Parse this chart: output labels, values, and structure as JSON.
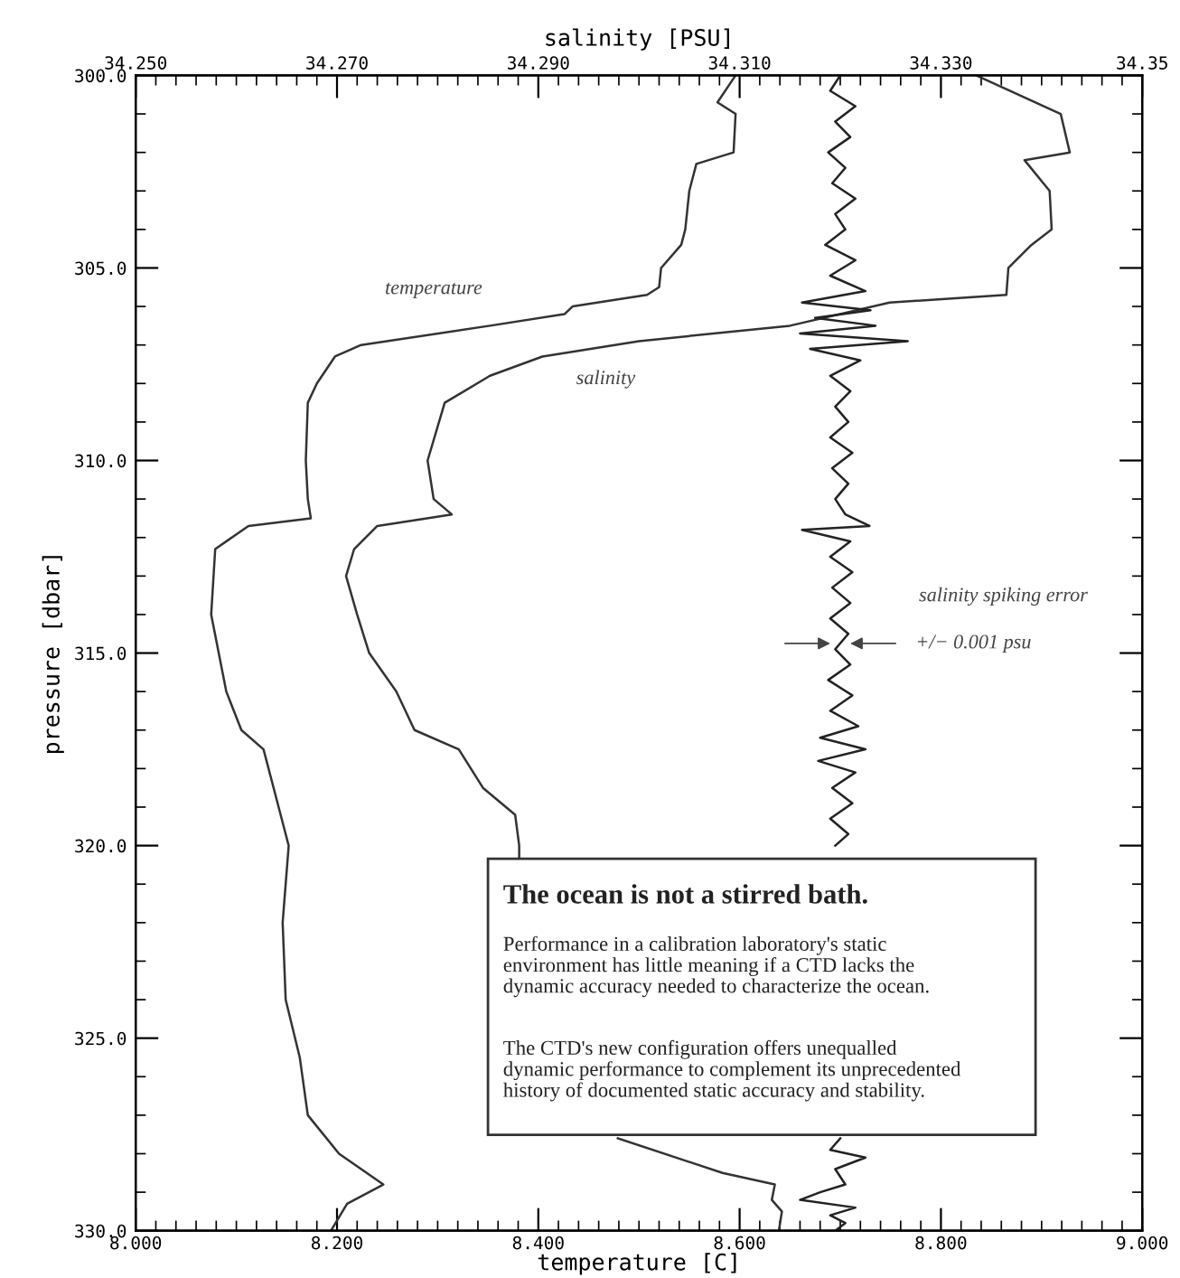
{
  "chart_data": {
    "type": "line",
    "orientation": "horizontal",
    "xlabel": "temperature [C]",
    "x2label": "salinity [PSU]",
    "ylabel": "pressure [dbar]",
    "xlim": [
      8.0,
      9.0
    ],
    "xticks": [
      {
        "value": 8.0,
        "label": "8.000"
      },
      {
        "value": 8.2,
        "label": "8.200"
      },
      {
        "value": 8.4,
        "label": "8.400"
      },
      {
        "value": 8.6,
        "label": "8.600"
      },
      {
        "value": 8.8,
        "label": "8.800"
      },
      {
        "value": 9.0,
        "label": "9.000"
      }
    ],
    "x2lim": [
      34.25,
      34.35
    ],
    "x2ticks": [
      {
        "value": 34.25,
        "label": "34.250"
      },
      {
        "value": 34.27,
        "label": "34.270"
      },
      {
        "value": 34.29,
        "label": "34.290"
      },
      {
        "value": 34.31,
        "label": "34.310"
      },
      {
        "value": 34.33,
        "label": "34.330"
      },
      {
        "value": 34.35,
        "label": "34.35"
      }
    ],
    "ylim": [
      330,
      300
    ],
    "yticks": [
      {
        "value": 300,
        "label": "300.0"
      },
      {
        "value": 305,
        "label": "305.0"
      },
      {
        "value": 310,
        "label": "310.0"
      },
      {
        "value": 315,
        "label": "315.0"
      },
      {
        "value": 320,
        "label": "320.0"
      },
      {
        "value": 325,
        "label": "325.0"
      },
      {
        "value": 330,
        "label": "330.0"
      }
    ],
    "grid": false,
    "legend": false,
    "marker": "none",
    "line_style": "solid",
    "series": [
      {
        "color": "#333333",
        "x": [
          300.0,
          300.7,
          301.0,
          302.0,
          302.3,
          303.0,
          304.0,
          304.4,
          305.0,
          305.5,
          305.7,
          306.0,
          306.2,
          306.5,
          307.0,
          307.3,
          308.0,
          308.5,
          310.0,
          311.0,
          311.5,
          311.7,
          312.3,
          314.0,
          316.0,
          317.0,
          317.5,
          319.0,
          320.0,
          322.0,
          324.0,
          325.5,
          327.0,
          328.0,
          328.8,
          329.3,
          330.0
        ],
        "values": [
          8.596,
          8.578,
          8.596,
          8.594,
          8.557,
          8.55,
          8.546,
          8.542,
          8.522,
          8.52,
          8.508,
          8.434,
          8.426,
          8.352,
          8.224,
          8.198,
          8.18,
          8.171,
          8.169,
          8.171,
          8.174,
          8.112,
          8.079,
          8.075,
          8.09,
          8.105,
          8.127,
          8.142,
          8.152,
          8.146,
          8.149,
          8.163,
          8.171,
          8.202,
          8.246,
          8.21,
          8.194
        ]
      },
      {
        "color": "#333333",
        "axis": "x2",
        "x": [
          300.0,
          301.0,
          302.0,
          302.2,
          303.0,
          304.0,
          304.4,
          305.0,
          305.7,
          305.9,
          306.5,
          306.9,
          307.3,
          307.8,
          308.5,
          310.0,
          311.0,
          311.4,
          311.7,
          312.3,
          313.0,
          314.0,
          315.0,
          316.0,
          317.0,
          317.5,
          318.5,
          319.2,
          320.0,
          320.3,
          324.0,
          327.6,
          328.5,
          328.8,
          329.2,
          329.5,
          330.0
        ],
        "values": [
          34.3335,
          34.3419,
          34.3428,
          34.3383,
          34.3408,
          34.341,
          34.339,
          34.3367,
          34.3365,
          34.3249,
          34.315,
          34.3,
          34.2904,
          34.2852,
          34.2807,
          34.279,
          34.2796,
          34.2814,
          34.274,
          34.2717,
          34.2709,
          34.272,
          34.2732,
          34.2759,
          34.2777,
          34.2821,
          34.2845,
          34.2877,
          34.2881,
          34.2881,
          null,
          34.2979,
          34.3083,
          34.3135,
          34.3132,
          34.3142,
          34.3139
        ]
      },
      {
        "color": "#222222",
        "axis": "x2",
        "x": [
          300.0,
          300.4,
          300.8,
          301.2,
          301.6,
          302.0,
          302.4,
          302.8,
          303.2,
          303.6,
          304.0,
          304.4,
          304.8,
          305.2,
          305.6,
          305.9,
          306.1,
          306.3,
          306.5,
          306.7,
          306.9,
          307.1,
          307.4,
          307.8,
          308.2,
          308.6,
          309.0,
          309.4,
          309.8,
          310.2,
          310.6,
          311.0,
          311.4,
          311.7,
          311.8,
          312.1,
          312.5,
          312.9,
          313.3,
          313.7,
          314.1,
          314.5,
          314.9,
          315.3,
          315.7,
          316.1,
          316.5,
          316.9,
          317.2,
          317.5,
          317.8,
          318.1,
          318.5,
          318.9,
          319.3,
          319.7,
          320.0,
          324.0,
          327.6,
          327.9,
          328.1,
          328.4,
          328.8,
          329.0,
          329.2,
          329.4,
          329.6,
          329.8,
          330.0
        ],
        "values": [
          34.32,
          34.319,
          34.3215,
          34.3195,
          34.321,
          34.3188,
          34.3205,
          34.3192,
          34.3215,
          34.3195,
          34.3205,
          34.3185,
          34.3215,
          34.319,
          34.3225,
          34.3162,
          34.323,
          34.3175,
          34.3235,
          34.316,
          34.3267,
          34.317,
          34.322,
          34.319,
          34.321,
          34.3195,
          34.3208,
          34.319,
          34.3212,
          34.3192,
          34.3208,
          34.3195,
          34.3205,
          34.3229,
          34.3162,
          34.321,
          34.319,
          34.3212,
          34.3192,
          34.321,
          34.319,
          34.3208,
          34.3195,
          34.321,
          34.3188,
          34.3212,
          34.319,
          34.3218,
          34.318,
          34.3225,
          34.3178,
          34.3215,
          34.3192,
          34.3212,
          34.319,
          34.3208,
          34.3195,
          null,
          34.32,
          34.319,
          34.3225,
          34.3195,
          34.3205,
          34.318,
          34.316,
          34.3215,
          34.319,
          34.3205,
          34.3195
        ]
      }
    ],
    "annotations": [
      "temperature",
      "salinity",
      "salinity spiking error",
      {
        "text": "+/− 0.001 psu",
        "x": 8.7,
        "y": 314.75
      },
      "The ocean is not a stirred bath.",
      "Performance in a calibration laboratory's static\nenvironment has little meaning if a CTD lacks the\ndynamic accuracy needed to characterize the ocean.",
      "The CTD's new configuration offers unequalled\ndynamic performance to complement its unprecedented\nhistory of documented static accuracy and stability."
    ]
  }
}
